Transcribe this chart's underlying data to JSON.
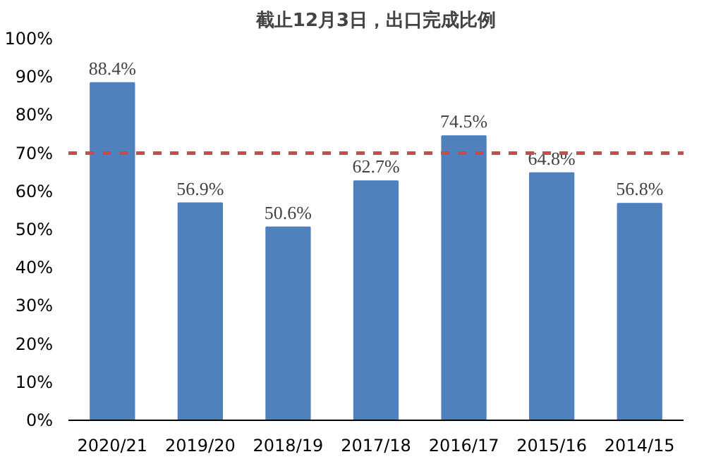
{
  "chart_data": {
    "type": "bar",
    "title": "截止12月3日，出口完成比例",
    "categories": [
      "2020/21",
      "2019/20",
      "2018/19",
      "2017/18",
      "2016/17",
      "2015/16",
      "2014/15"
    ],
    "values": [
      88.4,
      56.9,
      50.6,
      62.7,
      74.5,
      64.8,
      56.8
    ],
    "color": "#4f81bd",
    "value_labels": [
      "88.4%",
      "56.9%",
      "50.6%",
      "62.7%",
      "74.5%",
      "64.8%",
      "56.8%"
    ],
    "ylim": [
      0,
      100
    ],
    "yticks": [
      {
        "value": 0,
        "label": "0%"
      },
      {
        "value": 10,
        "label": "10%"
      },
      {
        "value": 20,
        "label": "20%"
      },
      {
        "value": 30,
        "label": "30%"
      },
      {
        "value": 40,
        "label": "40%"
      },
      {
        "value": 50,
        "label": "50%"
      },
      {
        "value": 60,
        "label": "60%"
      },
      {
        "value": 70,
        "label": "70%"
      },
      {
        "value": 80,
        "label": "80%"
      },
      {
        "value": 90,
        "label": "90%"
      },
      {
        "value": 100,
        "label": "100%"
      }
    ],
    "ref_lines": [
      {
        "axis": "y",
        "value": 70,
        "color": "#c0504d",
        "line_style": "dashed"
      }
    ],
    "grid": false
  }
}
